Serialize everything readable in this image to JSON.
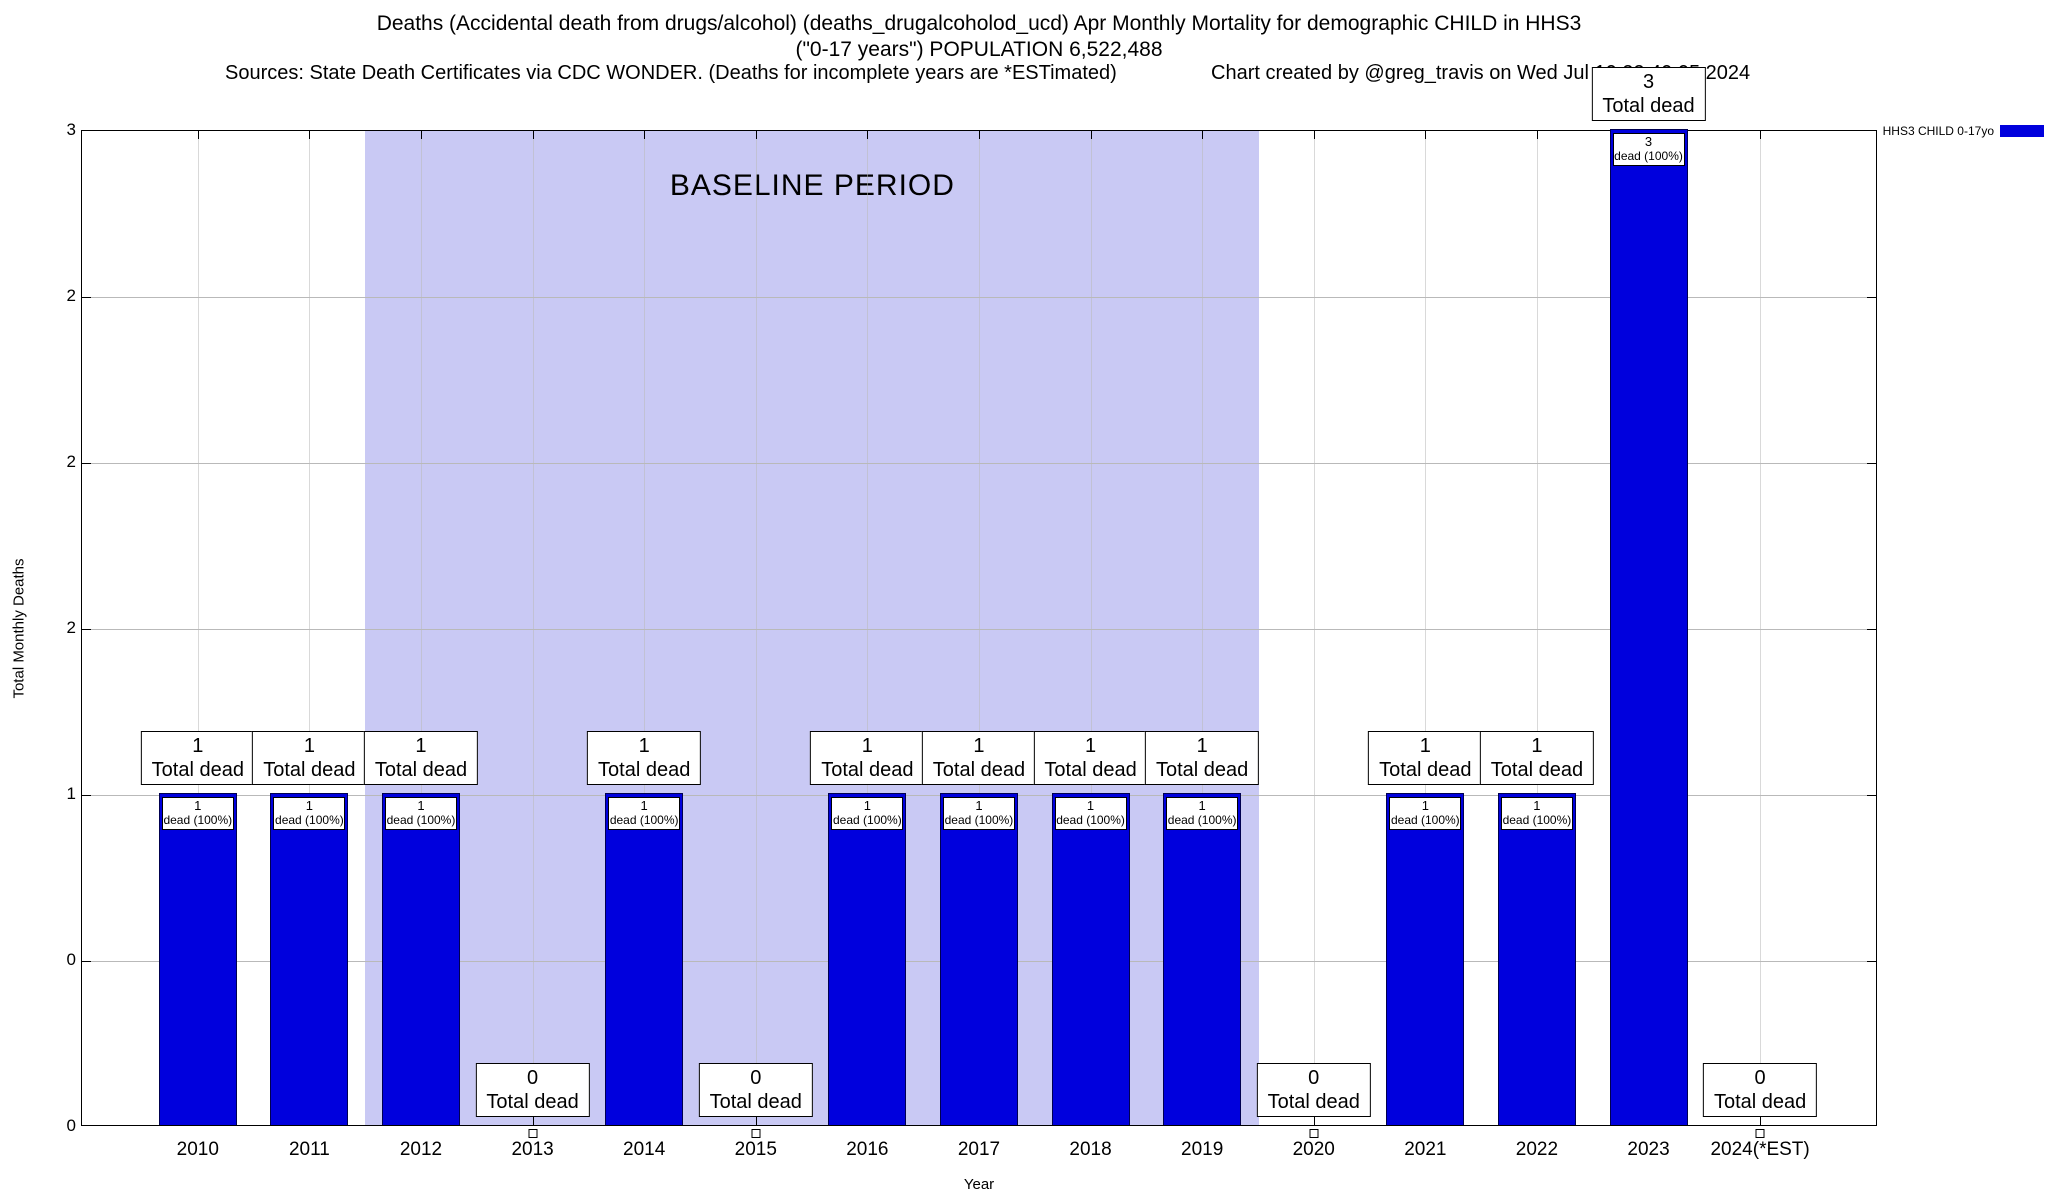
{
  "header": {
    "title_line1": "Deaths (Accidental death from drugs/alcohol) (deaths_drugalcoholod_ucd) Apr Monthly Mortality for demographic CHILD in HHS3",
    "title_line2": "(\"0-17 years\") POPULATION 6,522,488",
    "sources": "Sources: State Death Certificates via CDC WONDER. (Deaths for incomplete years are *ESTimated)",
    "credit": "Chart created by @greg_travis on Wed Jul 10 22:40:05 2024"
  },
  "colors": {
    "bar": "#0000dd",
    "baseline_bg": "#c9c9f4",
    "grid": "#b9b9b9"
  },
  "chart_data": {
    "type": "bar",
    "title": "Deaths (Accidental death from drugs/alcohol) (deaths_drugalcoholod_ucd) Apr Monthly Mortality for demographic CHILD in HHS3 (\"0-17 years\") POPULATION 6,522,488",
    "xlabel": "Year",
    "ylabel": "Total Monthly Deaths",
    "ylim": [
      0,
      3
    ],
    "grid": true,
    "ytick_values": [
      0,
      0.5,
      1,
      1.5,
      2,
      2.5,
      3
    ],
    "ytick_labels": [
      "0",
      "0",
      "1",
      "2",
      "2",
      "2",
      "3"
    ],
    "categories": [
      "2010",
      "2011",
      "2012",
      "2013",
      "2014",
      "2015",
      "2016",
      "2017",
      "2018",
      "2019",
      "2020",
      "2021",
      "2022",
      "2023",
      "2024(*EST)"
    ],
    "values": [
      1,
      1,
      1,
      0,
      1,
      0,
      1,
      1,
      1,
      1,
      0,
      1,
      1,
      3,
      0
    ],
    "bar_annotations": {
      "total_label": "Total dead",
      "inner_label": "dead (100%)"
    },
    "baseline_period": {
      "label": "BASELINE PERIOD",
      "start_category": "2012",
      "end_category": "2019"
    },
    "legend": [
      {
        "label": "HHS3 CHILD 0-17yo",
        "color": "#0000dd"
      }
    ],
    "legend_position": "top-right"
  }
}
